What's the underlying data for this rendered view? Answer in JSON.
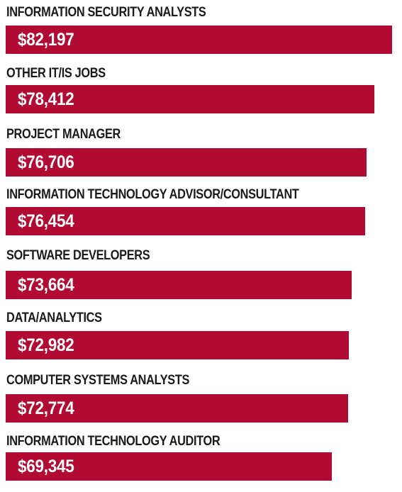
{
  "chart_data": {
    "type": "bar",
    "orientation": "horizontal",
    "categories": [
      "INFORMATION SECURITY ANALYSTS",
      "OTHER IT/IS JOBS",
      "PROJECT MANAGER",
      "INFORMATION TECHNOLOGY ADVISOR/CONSULTANT",
      "SOFTWARE DEVELOPERS",
      "DATA/ANALYTICS",
      "COMPUTER SYSTEMS ANALYSTS",
      "INFORMATION TECHNOLOGY AUDITOR"
    ],
    "values": [
      82197,
      78412,
      76706,
      76454,
      73664,
      72982,
      72774,
      69345
    ],
    "value_labels": [
      "$82,197",
      "$78,412",
      "$76,706",
      "$76,454",
      "$73,664",
      "$72,982",
      "$72,774",
      "$69,345"
    ],
    "bar_color": "#b10a33",
    "label_color": "#1a1a1a",
    "value_label_color": "#ffffff",
    "grid": false,
    "legend": "none"
  }
}
